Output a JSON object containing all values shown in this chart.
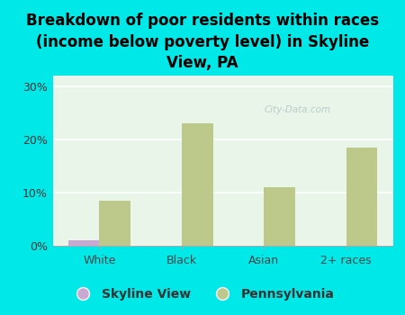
{
  "title": "Breakdown of poor residents within races\n(income below poverty level) in Skyline\nView, PA",
  "categories": [
    "White",
    "Black",
    "Asian",
    "2+ races"
  ],
  "skyline_view_values": [
    1.0,
    0.0,
    0.0,
    0.0
  ],
  "pennsylvania_values": [
    8.5,
    23.0,
    11.0,
    18.5
  ],
  "skyline_view_color": "#c9a8d4",
  "pennsylvania_color": "#bcc98a",
  "background_color": "#00e8e8",
  "plot_bg_color": "#e8f5e8",
  "ylim": [
    0,
    32
  ],
  "yticks": [
    0,
    10,
    20,
    30
  ],
  "ytick_labels": [
    "0%",
    "10%",
    "20%",
    "30%"
  ],
  "bar_width": 0.38,
  "title_fontsize": 12,
  "tick_fontsize": 9,
  "legend_fontsize": 10,
  "watermark": "City-Data.com"
}
